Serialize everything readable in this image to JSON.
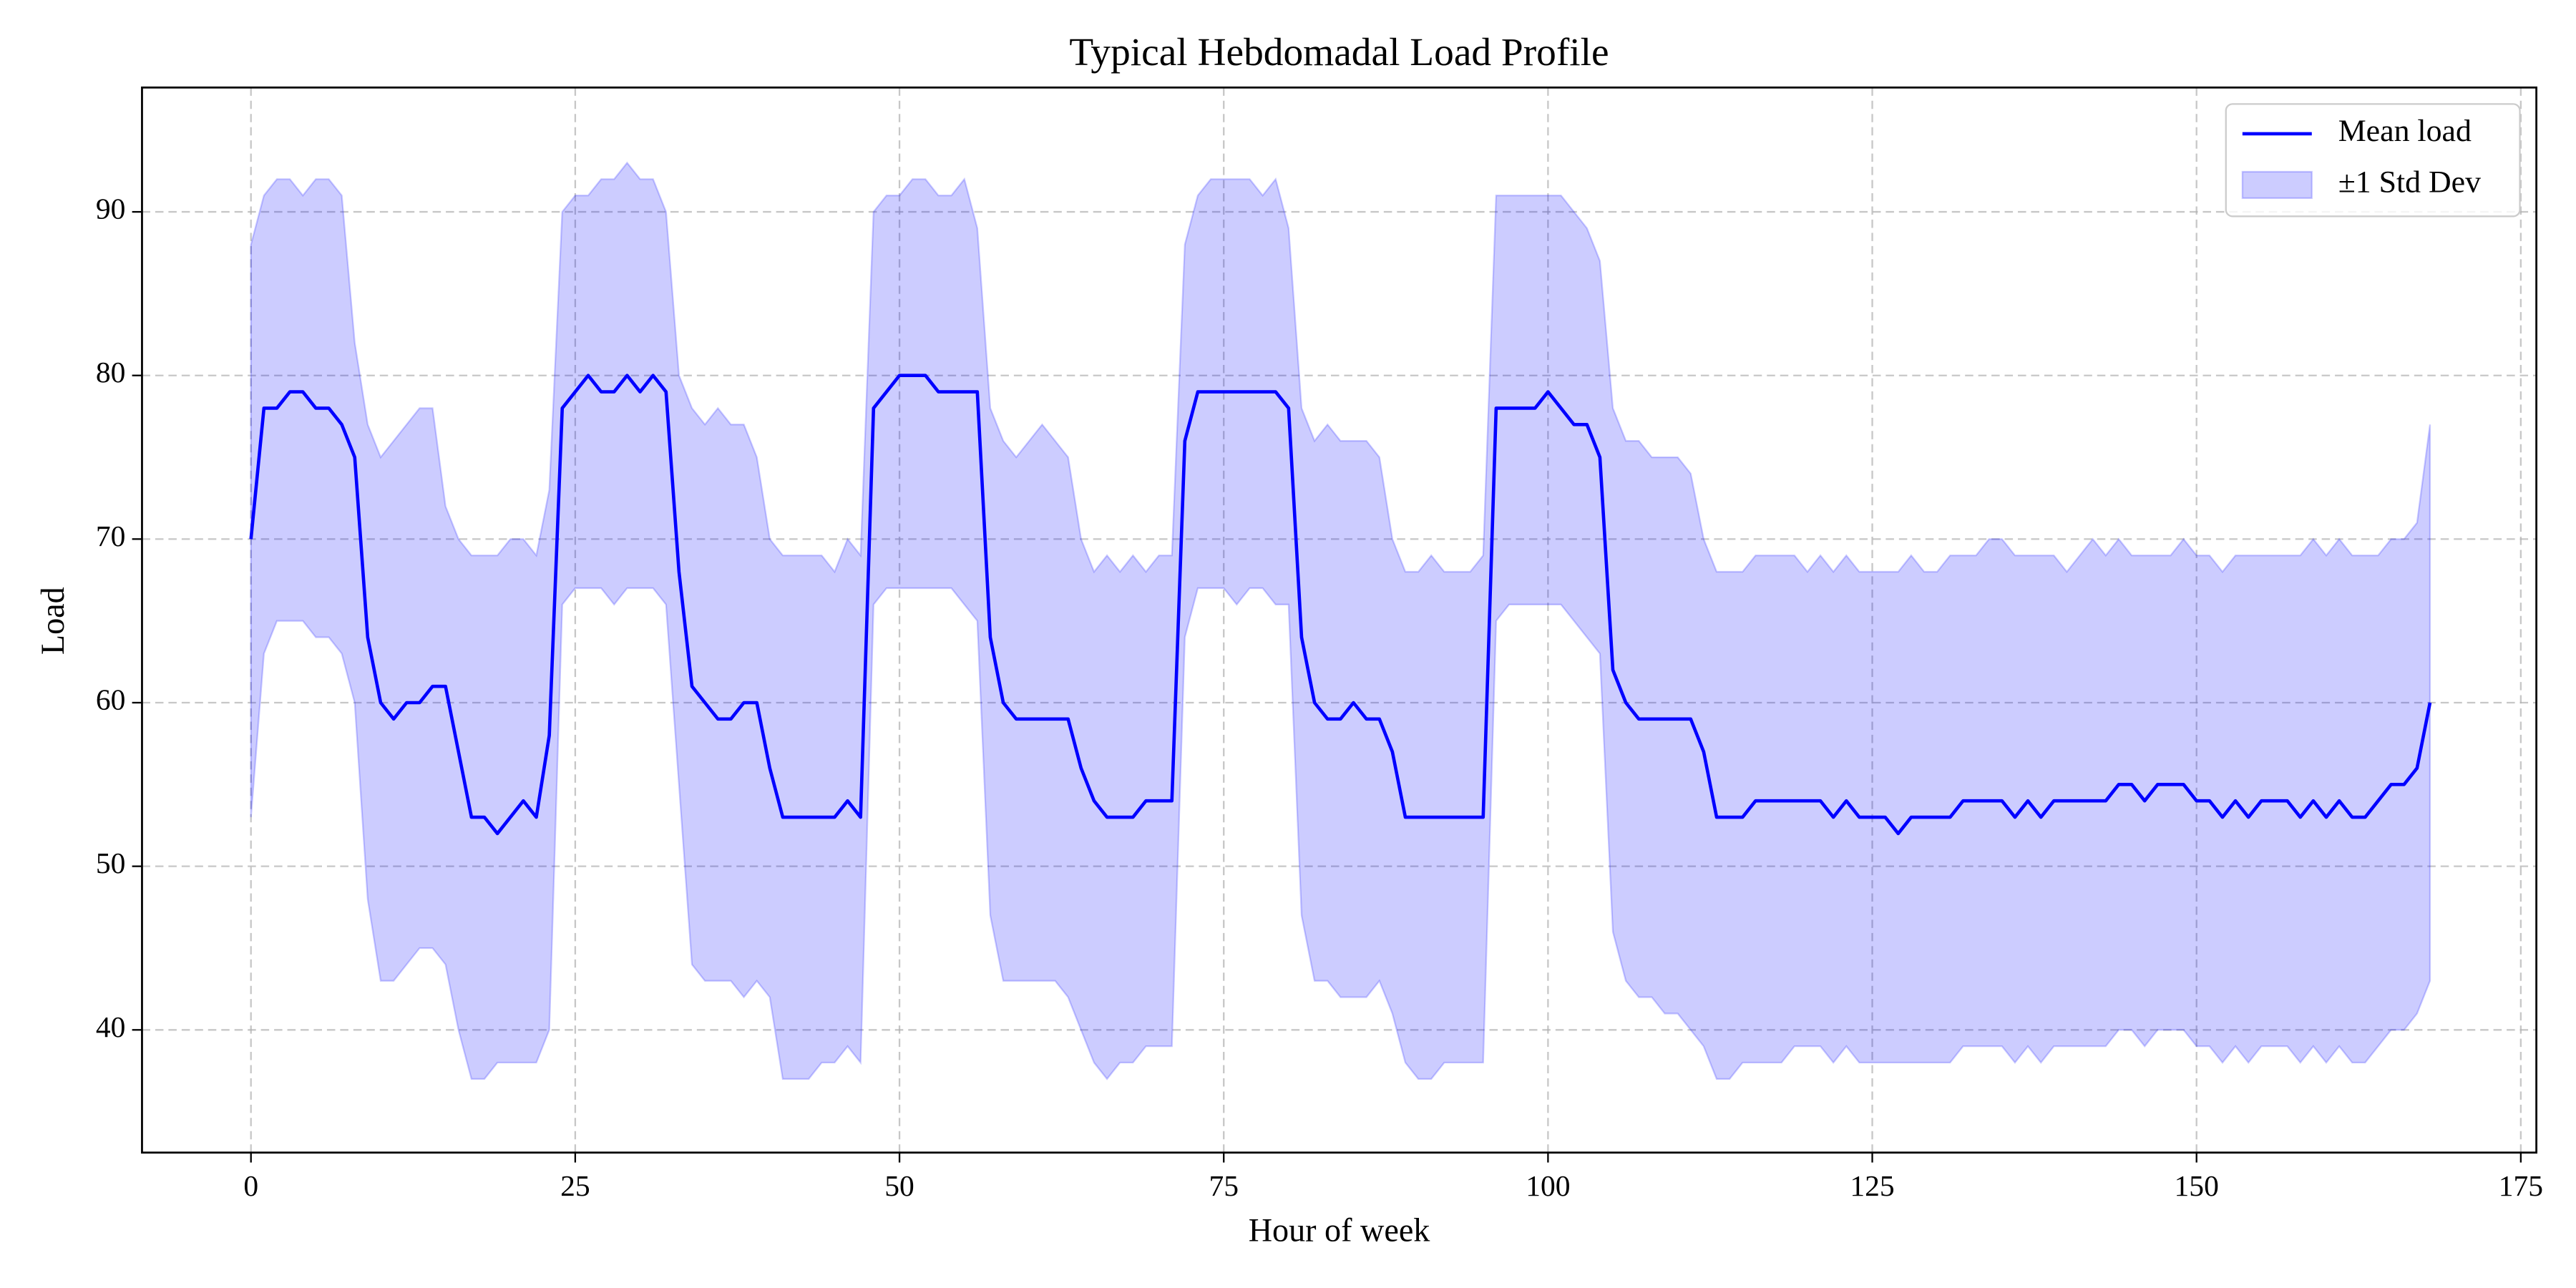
{
  "chart_data": {
    "type": "line",
    "title": "Typical Hebdomadal Load Profile",
    "x_label": "Hour of week",
    "y_label": "Load",
    "x": [
      0,
      1,
      2,
      3,
      4,
      5,
      6,
      7,
      8,
      9,
      10,
      11,
      12,
      13,
      14,
      15,
      16,
      17,
      18,
      19,
      20,
      21,
      22,
      23,
      24,
      25,
      26,
      27,
      28,
      29,
      30,
      31,
      32,
      33,
      34,
      35,
      36,
      37,
      38,
      39,
      40,
      41,
      42,
      43,
      44,
      45,
      46,
      47,
      48,
      49,
      50,
      51,
      52,
      53,
      54,
      55,
      56,
      57,
      58,
      59,
      60,
      61,
      62,
      63,
      64,
      65,
      66,
      67,
      68,
      69,
      70,
      71,
      72,
      73,
      74,
      75,
      76,
      77,
      78,
      79,
      80,
      81,
      82,
      83,
      84,
      85,
      86,
      87,
      88,
      89,
      90,
      91,
      92,
      93,
      94,
      95,
      96,
      97,
      98,
      99,
      100,
      101,
      102,
      103,
      104,
      105,
      106,
      107,
      108,
      109,
      110,
      111,
      112,
      113,
      114,
      115,
      116,
      117,
      118,
      119,
      120,
      121,
      122,
      123,
      124,
      125,
      126,
      127,
      128,
      129,
      130,
      131,
      132,
      133,
      134,
      135,
      136,
      137,
      138,
      139,
      140,
      141,
      142,
      143,
      144,
      145,
      146,
      147,
      148,
      149,
      150,
      151,
      152,
      153,
      154,
      155,
      156,
      157,
      158,
      159,
      160,
      161,
      162,
      163,
      164,
      165,
      166,
      167,
      168
    ],
    "series": [
      {
        "name": "Mean load",
        "color": "#0000ff",
        "values": [
          70,
          78,
          78,
          79,
          79,
          78,
          78,
          77,
          75,
          64,
          60,
          59,
          60,
          60,
          61,
          61,
          57,
          53,
          53,
          52,
          53,
          54,
          53,
          58,
          78,
          79,
          80,
          79,
          79,
          80,
          79,
          80,
          79,
          68,
          61,
          60,
          59,
          59,
          60,
          60,
          56,
          53,
          53,
          53,
          53,
          53,
          54,
          53,
          78,
          79,
          80,
          80,
          80,
          79,
          79,
          79,
          79,
          64,
          60,
          59,
          59,
          59,
          59,
          59,
          56,
          54,
          53,
          53,
          53,
          54,
          54,
          54,
          76,
          79,
          79,
          79,
          79,
          79,
          79,
          79,
          78,
          64,
          60,
          59,
          59,
          60,
          59,
          59,
          57,
          53,
          53,
          53,
          53,
          53,
          53,
          53,
          78,
          78,
          78,
          78,
          79,
          78,
          77,
          77,
          75,
          62,
          60,
          59,
          59,
          59,
          59,
          59,
          57,
          53,
          53,
          53,
          54,
          54,
          54,
          54,
          54,
          54,
          53,
          54,
          53,
          53,
          53,
          52,
          53,
          53,
          53,
          53,
          54,
          54,
          54,
          54,
          53,
          54,
          53,
          54,
          54,
          54,
          54,
          54,
          55,
          55,
          54,
          55,
          55,
          55,
          54,
          54,
          53,
          54,
          53,
          54,
          54,
          54,
          53,
          54,
          53,
          54,
          53,
          53,
          54,
          55,
          55,
          56,
          60
        ]
      }
    ],
    "band": {
      "name": "±1 Std Dev",
      "color": "#0000ff",
      "upper": [
        88,
        91,
        92,
        92,
        91,
        92,
        92,
        91,
        82,
        77,
        75,
        76,
        77,
        78,
        78,
        72,
        70,
        69,
        69,
        69,
        70,
        70,
        69,
        73,
        90,
        91,
        91,
        92,
        92,
        93,
        92,
        92,
        90,
        80,
        78,
        77,
        78,
        77,
        77,
        75,
        70,
        69,
        69,
        69,
        69,
        68,
        70,
        69,
        90,
        91,
        91,
        92,
        92,
        91,
        91,
        92,
        89,
        78,
        76,
        75,
        76,
        77,
        76,
        75,
        70,
        68,
        69,
        68,
        69,
        68,
        69,
        69,
        88,
        91,
        92,
        92,
        92,
        92,
        91,
        92,
        89,
        78,
        76,
        77,
        76,
        76,
        76,
        75,
        70,
        68,
        68,
        69,
        68,
        68,
        68,
        69,
        91,
        91,
        91,
        91,
        91,
        91,
        90,
        89,
        87,
        78,
        76,
        76,
        75,
        75,
        75,
        74,
        70,
        68,
        68,
        68,
        69,
        69,
        69,
        69,
        68,
        69,
        68,
        69,
        68,
        68,
        68,
        68,
        69,
        68,
        68,
        69,
        69,
        69,
        70,
        70,
        69,
        69,
        69,
        69,
        68,
        69,
        70,
        69,
        70,
        69,
        69,
        69,
        69,
        70,
        69,
        69,
        68,
        69,
        69,
        69,
        69,
        69,
        69,
        70,
        69,
        70,
        69,
        69,
        69,
        70,
        70,
        71,
        77
      ],
      "lower": [
        53,
        63,
        65,
        65,
        65,
        64,
        64,
        63,
        60,
        48,
        43,
        43,
        44,
        45,
        45,
        44,
        40,
        37,
        37,
        38,
        38,
        38,
        38,
        40,
        66,
        67,
        67,
        67,
        66,
        67,
        67,
        67,
        66,
        55,
        44,
        43,
        43,
        43,
        42,
        43,
        42,
        37,
        37,
        37,
        38,
        38,
        39,
        38,
        66,
        67,
        67,
        67,
        67,
        67,
        67,
        66,
        65,
        47,
        43,
        43,
        43,
        43,
        43,
        42,
        40,
        38,
        37,
        38,
        38,
        39,
        39,
        39,
        64,
        67,
        67,
        67,
        66,
        67,
        67,
        66,
        66,
        47,
        43,
        43,
        42,
        42,
        42,
        43,
        41,
        38,
        37,
        37,
        38,
        38,
        38,
        38,
        65,
        66,
        66,
        66,
        66,
        66,
        65,
        64,
        63,
        46,
        43,
        42,
        42,
        41,
        41,
        40,
        39,
        37,
        37,
        38,
        38,
        38,
        38,
        39,
        39,
        39,
        38,
        39,
        38,
        38,
        38,
        38,
        38,
        38,
        38,
        38,
        39,
        39,
        39,
        39,
        38,
        39,
        38,
        39,
        39,
        39,
        39,
        39,
        40,
        40,
        39,
        40,
        40,
        40,
        39,
        39,
        38,
        39,
        38,
        39,
        39,
        39,
        38,
        39,
        38,
        39,
        38,
        38,
        39,
        40,
        40,
        41,
        43
      ]
    },
    "xlim": [
      -8.4,
      176.2
    ],
    "ylim": [
      32.5,
      97.6
    ],
    "xticks": [
      0,
      25,
      50,
      75,
      100,
      125,
      150,
      175
    ],
    "yticks": [
      40,
      50,
      60,
      70,
      80,
      90
    ],
    "grid": true,
    "legend": "upper right"
  }
}
